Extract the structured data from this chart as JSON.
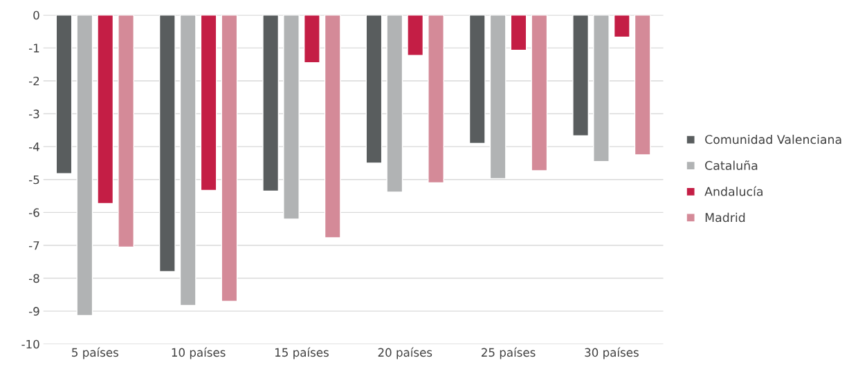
{
  "chart_data": {
    "type": "bar",
    "categories": [
      "5 países",
      "10 países",
      "15 países",
      "20 países",
      "25 países",
      "30 países"
    ],
    "series": [
      {
        "name": "Comunidad Valenciana",
        "color": "#595d5e",
        "values": [
          -4.82,
          -7.8,
          -5.35,
          -4.5,
          -3.9,
          -3.67
        ]
      },
      {
        "name": "Cataluña",
        "color": "#b1b3b4",
        "values": [
          -9.13,
          -8.83,
          -6.2,
          -5.38,
          -4.97,
          -4.45
        ]
      },
      {
        "name": "Andalucía",
        "color": "#c41e45",
        "values": [
          -5.73,
          -5.33,
          -1.45,
          -1.23,
          -1.07,
          -0.67
        ]
      },
      {
        "name": "Madrid",
        "color": "#d48a98",
        "values": [
          -7.05,
          -8.7,
          -6.77,
          -5.1,
          -4.73,
          -4.25
        ]
      }
    ],
    "ylim": [
      -10,
      0
    ],
    "yticks": [
      0,
      -1,
      -2,
      -3,
      -4,
      -5,
      -6,
      -7,
      -8,
      -9,
      -10
    ],
    "grid": "y",
    "legend": "right"
  }
}
